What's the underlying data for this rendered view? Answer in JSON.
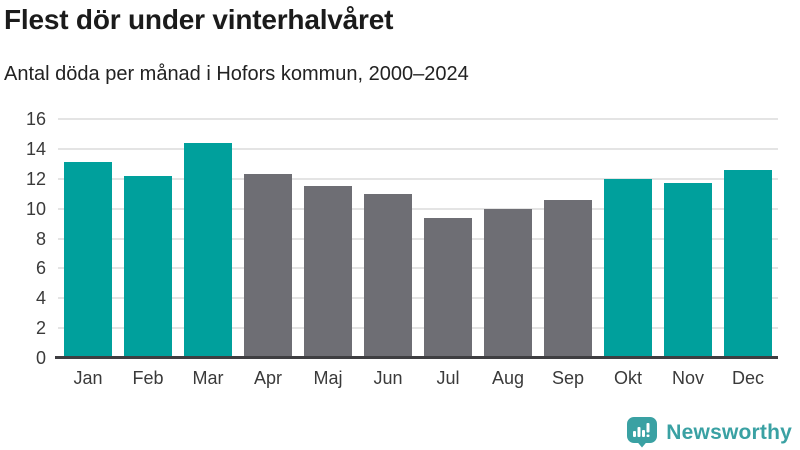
{
  "title": "Flest dör under vinterhalvåret",
  "subtitle": "Antal döda per månad i Hofors kommun, 2000–2024",
  "chart_data": {
    "type": "bar",
    "title": "Flest dör under vinterhalvåret",
    "subtitle": "Antal döda per månad i Hofors kommun, 2000–2024",
    "categories": [
      "Jan",
      "Feb",
      "Mar",
      "Apr",
      "Maj",
      "Jun",
      "Jul",
      "Aug",
      "Sep",
      "Okt",
      "Nov",
      "Dec"
    ],
    "values": [
      13.1,
      12.2,
      14.4,
      12.3,
      11.5,
      11.0,
      9.4,
      10.0,
      10.6,
      12.0,
      11.7,
      12.6
    ],
    "bar_color_keys": [
      "teal",
      "teal",
      "teal",
      "gray",
      "gray",
      "gray",
      "gray",
      "gray",
      "gray",
      "teal",
      "teal",
      "teal"
    ],
    "colors": {
      "teal": "#00a09c",
      "gray": "#6e6e74"
    },
    "xlabel": "",
    "ylabel": "",
    "ylim": [
      0,
      16
    ],
    "yticks": [
      0,
      2,
      4,
      6,
      8,
      10,
      12,
      14,
      16
    ],
    "grid": true,
    "legend": false
  },
  "footer": {
    "brand": "Newsworthy",
    "brand_color": "#3aa1a3",
    "logo_icon": "newsworthy-speech-bubble-bar-chart-icon"
  }
}
